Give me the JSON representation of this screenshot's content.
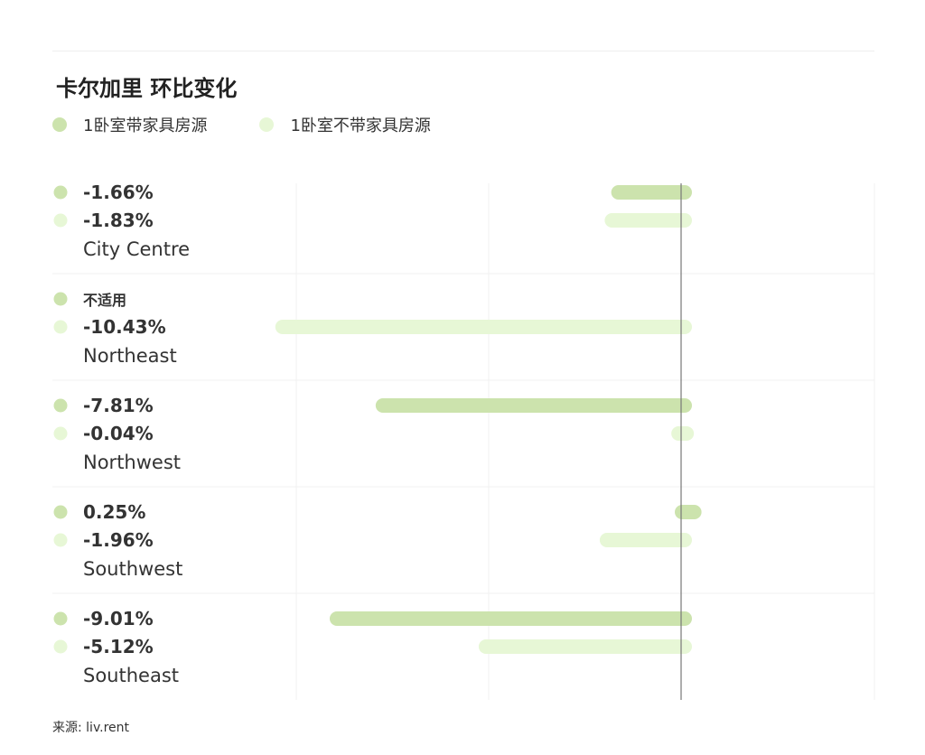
{
  "title": "卡尔加里 环比变化",
  "source": "来源: liv.rent",
  "colors": {
    "series_furnished": "#cce3ad",
    "series_unfurnished": "#e7f7d6",
    "zero_line": "#777777",
    "grid": "#f0f0f0"
  },
  "chart_data": {
    "type": "bar",
    "orientation": "horizontal",
    "categories": [
      "City Centre",
      "Northeast",
      "Northwest",
      "Southwest",
      "Southeast"
    ],
    "series": [
      {
        "name": "1卧室带家具房源",
        "values": [
          -1.66,
          null,
          -7.81,
          0.25,
          -9.01
        ],
        "labels": [
          "-1.66%",
          "不适用",
          "-7.81%",
          "0.25%",
          "-9.01%"
        ]
      },
      {
        "name": "1卧室不带家具房源",
        "values": [
          -1.83,
          -10.43,
          -0.04,
          -1.96,
          -5.12
        ],
        "labels": [
          "-1.83%",
          "-10.43%",
          "-0.04%",
          "-1.96%",
          "-5.12%"
        ]
      }
    ],
    "xlim": [
      -10.43,
      0.25
    ],
    "grid": true,
    "legend": "top-left"
  }
}
